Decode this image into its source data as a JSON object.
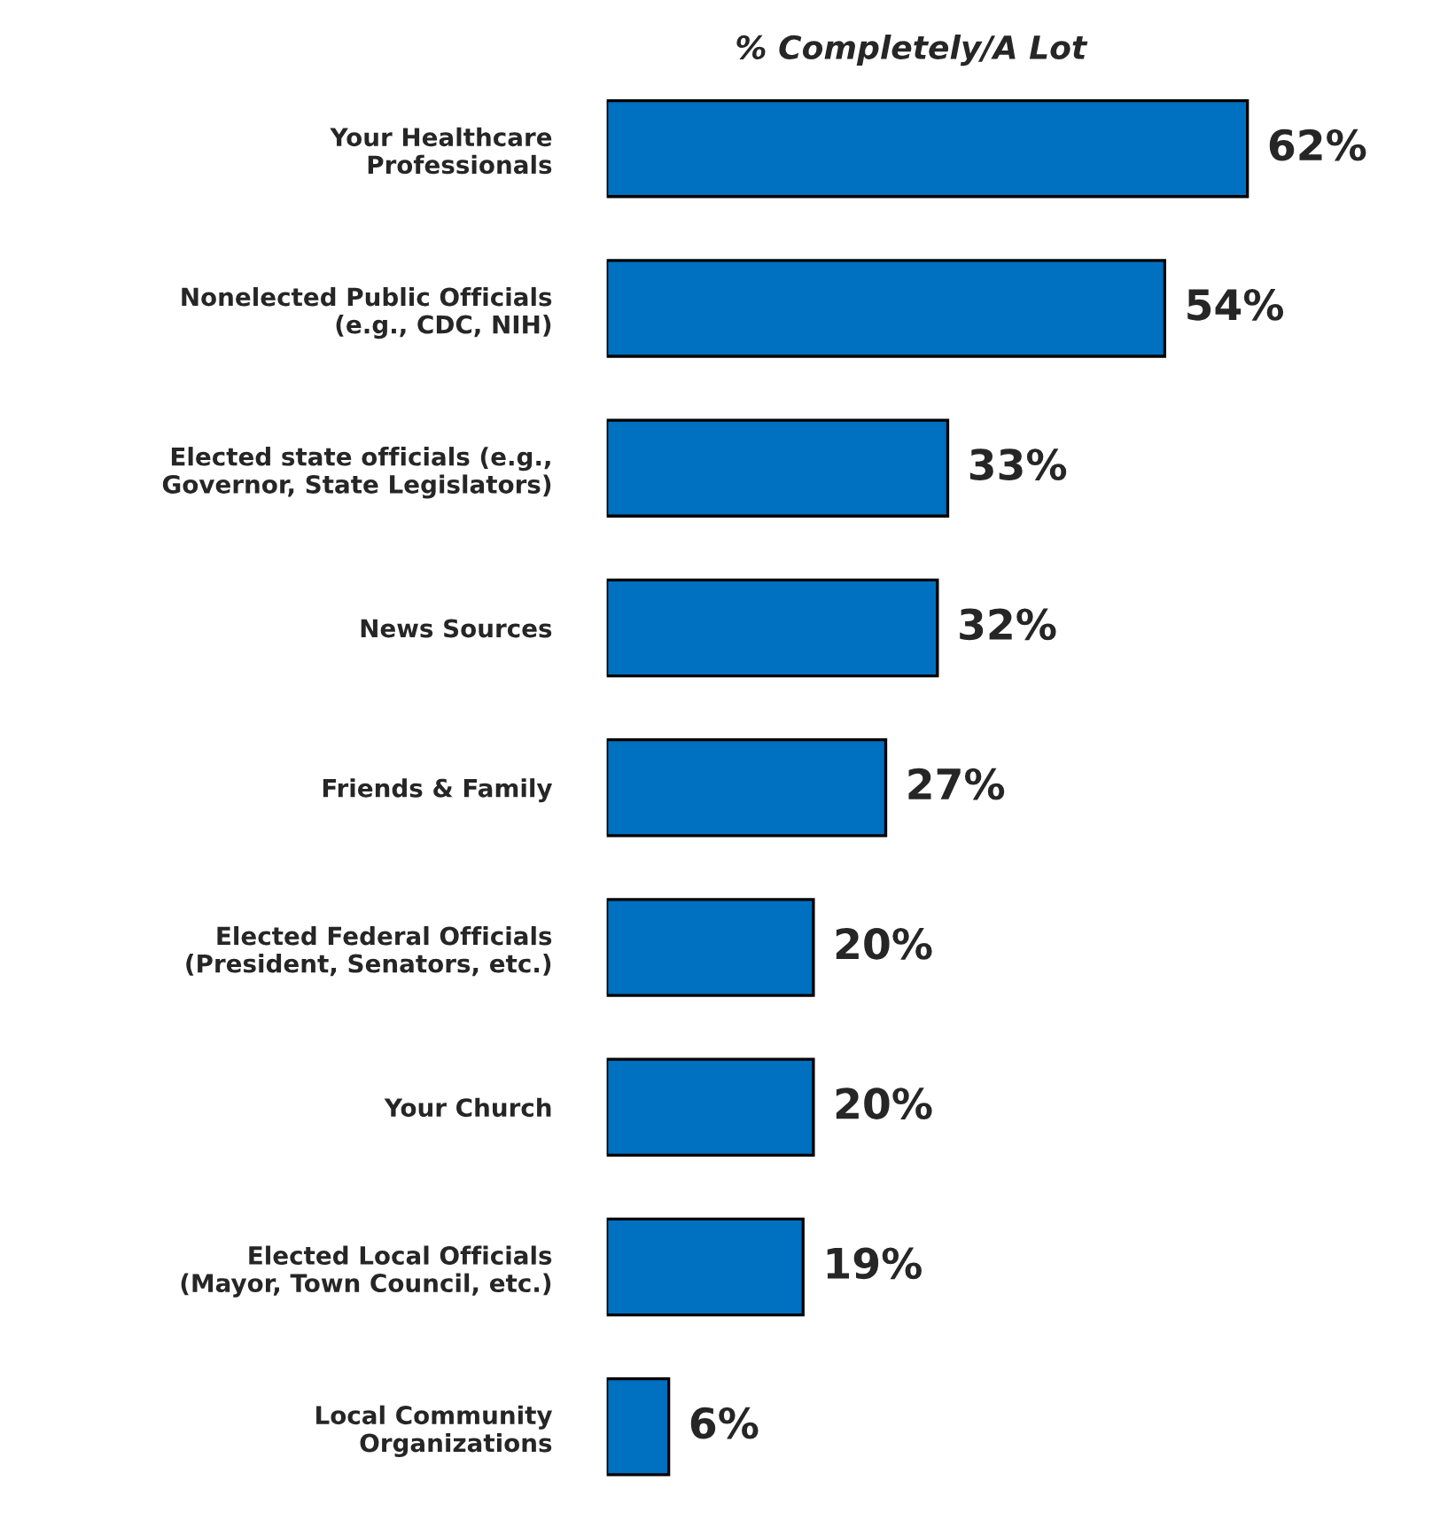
{
  "chart_data": {
    "type": "bar",
    "orientation": "horizontal",
    "title": "% Completely/A Lot",
    "categories": [
      "Your Healthcare\nProfessionals",
      "Nonelected Public Officials\n(e.g., CDC, NIH)",
      "Elected state officials (e.g.,\nGovernor, State Legislators)",
      "News Sources",
      "Friends & Family",
      "Elected Federal Officials\n(President, Senators, etc.)",
      "Your Church",
      "Elected Local Officials\n(Mayor, Town Council, etc.)",
      "Local Community\nOrganizations"
    ],
    "values": [
      62,
      54,
      33,
      32,
      27,
      20,
      20,
      19,
      6
    ],
    "value_labels": [
      "62%",
      "54%",
      "33%",
      "32%",
      "27%",
      "20%",
      "20%",
      "19%",
      "6%"
    ],
    "color": "#0070c0",
    "grid": false,
    "legend": false
  }
}
